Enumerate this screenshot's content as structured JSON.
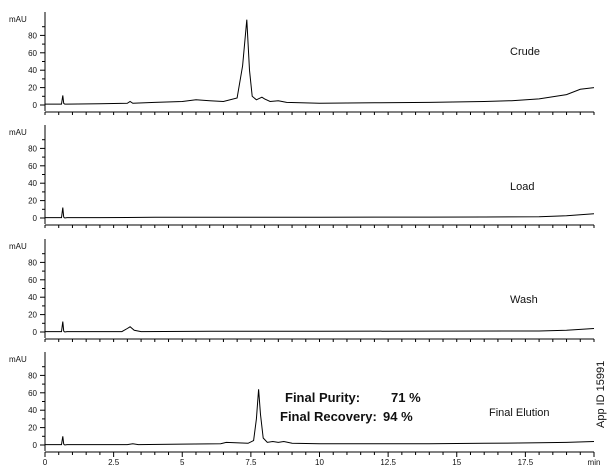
{
  "chart_data": {
    "type": "line",
    "title": "",
    "x_axis": {
      "unit": "min",
      "range": [
        0,
        20
      ],
      "ticks": [
        0,
        2.5,
        5,
        7.5,
        10,
        12.5,
        15,
        17.5
      ],
      "tick_labels": [
        "0",
        "2.5",
        "5",
        "7.5",
        "10",
        "12.5",
        "15",
        "17.5"
      ]
    },
    "y_axis": {
      "unit": "mAU",
      "range": [
        0,
        100
      ],
      "ticks": [
        0,
        20,
        40,
        60,
        80
      ],
      "tick_labels": [
        "0",
        "20",
        "40",
        "60",
        "80"
      ]
    },
    "grid": false,
    "panels": [
      {
        "label": "Crude",
        "x": [
          0,
          0.6,
          0.65,
          0.68,
          0.72,
          0.8,
          2.0,
          3.0,
          3.1,
          3.2,
          4.0,
          5.0,
          5.5,
          6.0,
          6.5,
          7.0,
          7.2,
          7.35,
          7.45,
          7.55,
          7.7,
          7.9,
          8.0,
          8.2,
          8.5,
          8.8,
          10,
          12,
          14,
          16,
          17,
          18,
          19,
          19.5,
          20
        ],
        "y": [
          1,
          1,
          11,
          2,
          1,
          1,
          1.5,
          2,
          4,
          2,
          3,
          4,
          6,
          5,
          4,
          8,
          45,
          98,
          40,
          10,
          6,
          9,
          7,
          4,
          5,
          3,
          2,
          2.5,
          3,
          4,
          5,
          7,
          12,
          18,
          20
        ]
      },
      {
        "label": "Load",
        "x": [
          0,
          0.6,
          0.65,
          0.68,
          0.72,
          0.8,
          2,
          4,
          6,
          8,
          10,
          12,
          14,
          16,
          18,
          19,
          20
        ],
        "y": [
          0.5,
          0.5,
          12,
          1,
          0,
          0.5,
          0.5,
          0.8,
          0.8,
          0.8,
          0.8,
          1,
          1,
          1.2,
          1.5,
          2.5,
          5
        ]
      },
      {
        "label": "Wash",
        "x": [
          0,
          0.6,
          0.65,
          0.68,
          0.72,
          0.8,
          2.8,
          3.0,
          3.1,
          3.25,
          3.5,
          6,
          10,
          14,
          18,
          19,
          20
        ],
        "y": [
          0.5,
          0.5,
          12,
          1,
          0,
          0.5,
          0.5,
          4,
          6,
          2,
          0.5,
          0.8,
          0.8,
          1,
          1.2,
          2,
          4
        ]
      },
      {
        "label": "Final Elution",
        "x": [
          0,
          0.6,
          0.65,
          0.68,
          0.72,
          0.8,
          3,
          3.2,
          3.4,
          5,
          6.4,
          6.6,
          7.4,
          7.6,
          7.7,
          7.78,
          7.85,
          7.95,
          8.1,
          8.3,
          8.5,
          8.7,
          9,
          10,
          12,
          14,
          16,
          18,
          19,
          20
        ],
        "y": [
          0.5,
          0.5,
          10,
          1,
          0,
          0.5,
          0.5,
          1.5,
          0.5,
          1,
          1.5,
          3,
          2,
          5,
          30,
          64,
          35,
          8,
          3,
          4,
          3,
          4,
          2,
          1.5,
          1.5,
          1.5,
          2,
          2.5,
          3,
          4
        ]
      }
    ],
    "annotations": {
      "purity_label": "Final Purity:",
      "purity_value": "71 %",
      "recovery_label": "Final Recovery:",
      "recovery_value": "94 %"
    },
    "side_label": "App ID 15991"
  }
}
